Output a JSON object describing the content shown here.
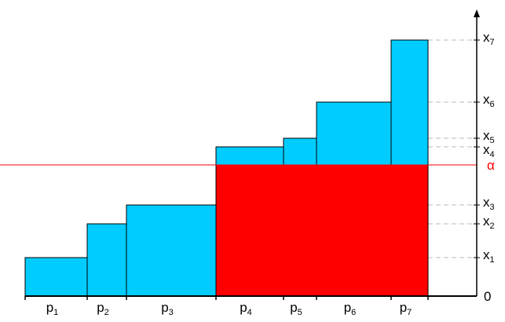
{
  "colors": {
    "bar_fill": "#00ccff",
    "highlight_fill": "#ff0000",
    "alpha_line": "#ff0000",
    "guide_line": "#bbbbbb",
    "outline": "#000000"
  },
  "diagram": {
    "x_values": [
      {
        "id": "x1",
        "base": "x",
        "sub": "1",
        "value": 49
      },
      {
        "id": "x2",
        "base": "x",
        "sub": "2",
        "value": 92
      },
      {
        "id": "x3",
        "base": "x",
        "sub": "3",
        "value": 116
      },
      {
        "id": "x4",
        "base": "x",
        "sub": "4",
        "value": 190
      },
      {
        "id": "x5",
        "base": "x",
        "sub": "5",
        "value": 201
      },
      {
        "id": "x6",
        "base": "x",
        "sub": "6",
        "value": 247
      },
      {
        "id": "x7",
        "base": "x",
        "sub": "7",
        "value": 326
      }
    ],
    "zero_label": "0",
    "alpha": {
      "label": "α",
      "value": 167
    },
    "bars": [
      {
        "label_base": "p",
        "label_sub": "1",
        "width": 79,
        "x_ref": "x1"
      },
      {
        "label_base": "p",
        "label_sub": "2",
        "width": 50,
        "x_ref": "x2"
      },
      {
        "label_base": "p",
        "label_sub": "3",
        "width": 114,
        "x_ref": "x3"
      },
      {
        "label_base": "p",
        "label_sub": "4",
        "width": 86,
        "x_ref": "x4"
      },
      {
        "label_base": "p",
        "label_sub": "5",
        "width": 42,
        "x_ref": "x5"
      },
      {
        "label_base": "p",
        "label_sub": "6",
        "width": 95,
        "x_ref": "x6"
      },
      {
        "label_base": "p",
        "label_sub": "7",
        "width": 47,
        "x_ref": "x7"
      }
    ],
    "highlight_from_bar": 3
  }
}
